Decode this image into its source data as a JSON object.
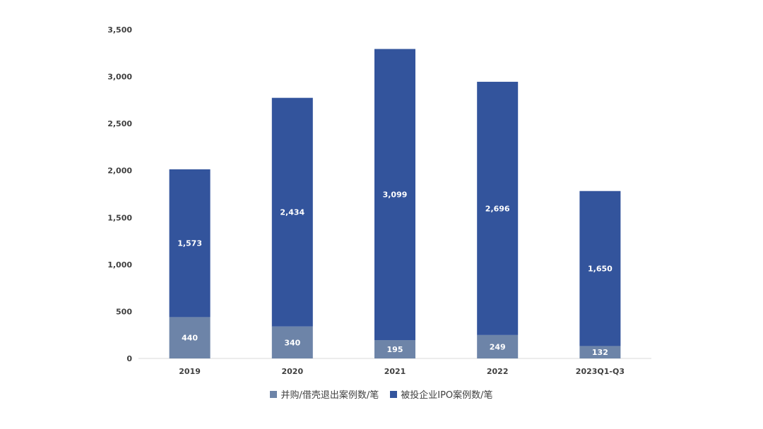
{
  "chart_data": {
    "type": "bar",
    "stacked": true,
    "categories": [
      "2019",
      "2020",
      "2021",
      "2022",
      "2023Q1-Q3"
    ],
    "series": [
      {
        "name": "并购/借壳退出案例数/笔",
        "color": "#6d84a8",
        "values": [
          440,
          340,
          195,
          249,
          132
        ]
      },
      {
        "name": "被投企业IPO案例数/笔",
        "color": "#33549c",
        "values": [
          1573,
          2434,
          3099,
          2696,
          1650
        ]
      }
    ],
    "yticks": [
      "0",
      "500",
      "1,000",
      "1,500",
      "2,000",
      "2,500",
      "3,000",
      "3,500"
    ],
    "ylim": [
      0,
      3500
    ],
    "grid": false,
    "legend_position": "bottom"
  }
}
